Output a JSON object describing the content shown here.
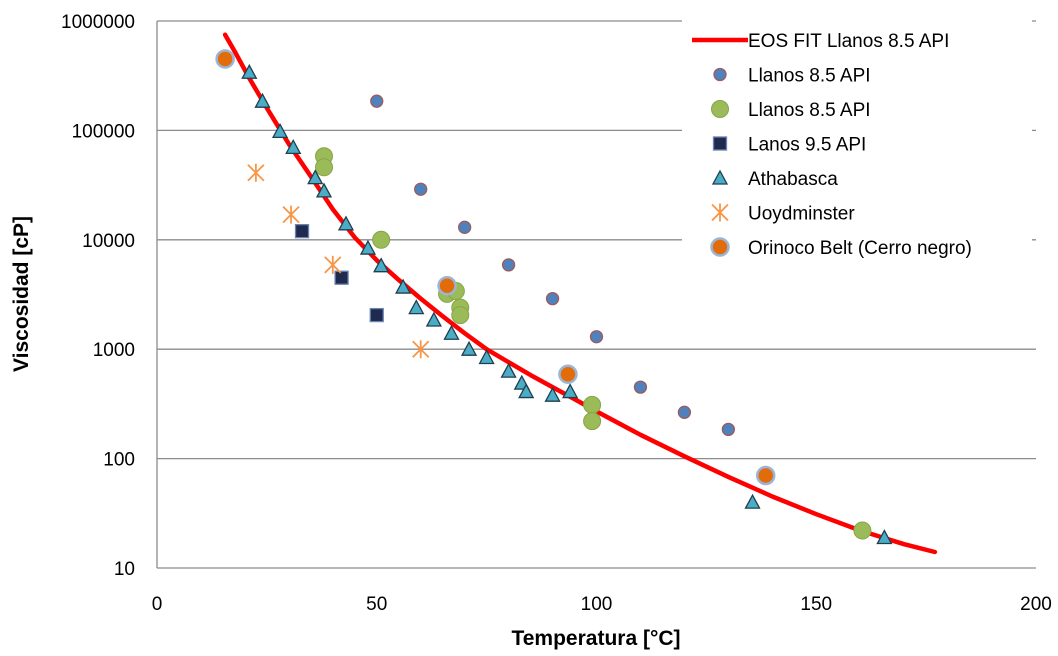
{
  "chart_data": {
    "type": "scatter",
    "title": "",
    "xlabel": "Temperatura [°C]",
    "ylabel": "Viscosidad [cP]",
    "xlim": [
      0,
      200
    ],
    "ylim": [
      10,
      1000000
    ],
    "y_scale": "log",
    "x_ticks": [
      "0",
      "50",
      "100",
      "150",
      "200"
    ],
    "y_ticks": [
      "10",
      "100",
      "1000",
      "10000",
      "100000",
      "1000000"
    ],
    "grid": "horizontal",
    "legend_position": "top-right",
    "series": [
      {
        "name": "EOS FIT Llanos 8.5 API",
        "kind": "line",
        "color": "#ff0000",
        "points": [
          [
            15.5,
            750000
          ],
          [
            18,
            500000
          ],
          [
            21,
            300000
          ],
          [
            25,
            160000
          ],
          [
            30,
            75000
          ],
          [
            35,
            38000
          ],
          [
            40,
            19000
          ],
          [
            45,
            10500
          ],
          [
            50,
            6500
          ],
          [
            55,
            4300
          ],
          [
            60,
            2900
          ],
          [
            65,
            2000
          ],
          [
            70,
            1400
          ],
          [
            75,
            1000
          ],
          [
            80,
            760
          ],
          [
            85,
            580
          ],
          [
            90,
            450
          ],
          [
            95,
            350
          ],
          [
            100,
            270
          ],
          [
            110,
            165
          ],
          [
            120,
            105
          ],
          [
            130,
            68
          ],
          [
            140,
            45
          ],
          [
            150,
            31
          ],
          [
            160,
            22
          ],
          [
            170,
            16.5
          ],
          [
            177,
            14
          ]
        ]
      },
      {
        "name": "Llanos 8.5 API",
        "kind": "circle-small",
        "color": "#4f81bd",
        "points": [
          [
            50,
            185000
          ],
          [
            60,
            29000
          ],
          [
            70,
            13000
          ],
          [
            80,
            5900
          ],
          [
            90,
            2900
          ],
          [
            100,
            1300
          ],
          [
            110,
            450
          ],
          [
            120,
            265
          ],
          [
            130,
            185
          ]
        ]
      },
      {
        "name": "Llanos 8.5 API",
        "kind": "circle-large",
        "color": "#9bbb59",
        "points": [
          [
            38,
            58000
          ],
          [
            38,
            46000
          ],
          [
            51,
            10000
          ],
          [
            66,
            3200
          ],
          [
            68,
            3400
          ],
          [
            69,
            2400
          ],
          [
            69,
            2050
          ],
          [
            99,
            310
          ],
          [
            99,
            220
          ],
          [
            160.5,
            22
          ]
        ]
      },
      {
        "name": "Lanos 9.5 API",
        "kind": "square",
        "color": "#1f2a4f",
        "points": [
          [
            33,
            12000
          ],
          [
            42,
            4500
          ],
          [
            50,
            2050
          ]
        ]
      },
      {
        "name": "Athabasca",
        "kind": "triangle",
        "color": "#4bacc6",
        "points": [
          [
            21,
            340000
          ],
          [
            24,
            185000
          ],
          [
            28,
            98000
          ],
          [
            31,
            70000
          ],
          [
            36,
            37000
          ],
          [
            38,
            28000
          ],
          [
            43,
            14000
          ],
          [
            48,
            8400
          ],
          [
            51,
            5800
          ],
          [
            56,
            3700
          ],
          [
            59,
            2400
          ],
          [
            63,
            1850
          ],
          [
            67,
            1400
          ],
          [
            71,
            1000
          ],
          [
            75,
            840
          ],
          [
            80,
            630
          ],
          [
            83,
            490
          ],
          [
            84,
            410
          ],
          [
            90,
            380
          ],
          [
            94,
            410
          ],
          [
            135.5,
            40
          ],
          [
            165.5,
            19
          ]
        ]
      },
      {
        "name": "Uoydminster",
        "kind": "asterisk",
        "color": "#f79646",
        "points": [
          [
            22.5,
            41000
          ],
          [
            30.5,
            17000
          ],
          [
            40,
            5900
          ],
          [
            60,
            1000
          ]
        ]
      },
      {
        "name": "Orinoco Belt (Cerro negro)",
        "kind": "circle-orange",
        "color": "#e36c0a",
        "points": [
          [
            15.5,
            450000
          ],
          [
            66,
            3800
          ],
          [
            93.5,
            590
          ],
          [
            138.5,
            70
          ]
        ]
      }
    ]
  }
}
